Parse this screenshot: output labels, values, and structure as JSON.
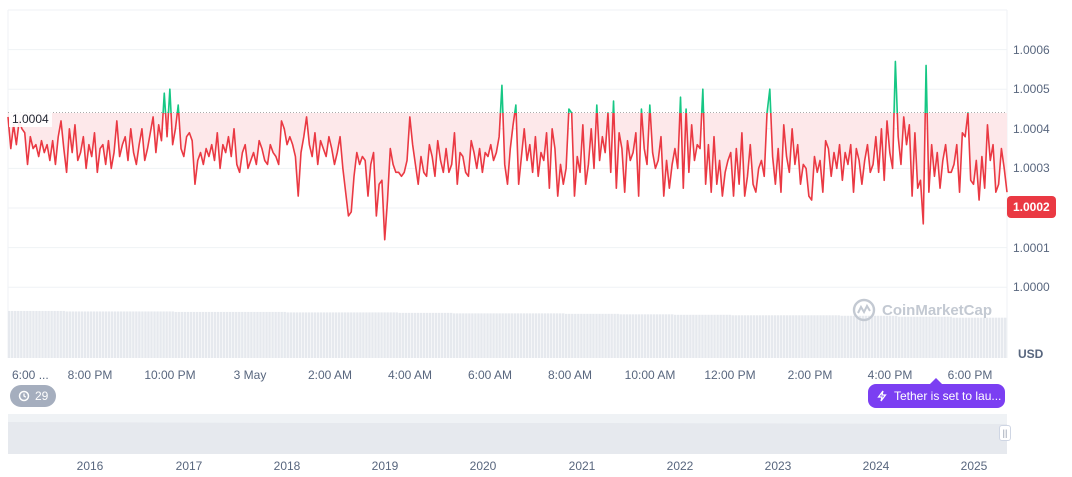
{
  "chart_data": {
    "type": "line",
    "title": "",
    "unit": "USD",
    "reference_price": 1.00044,
    "reference_label": "1.0004",
    "current_price": 1.0002,
    "current_price_label": "1.0002",
    "ylim": [
      0.99995,
      1.0007
    ],
    "y_ticks": [
      "1.0000",
      "1.0001",
      "1.0002",
      "1.0003",
      "1.0004",
      "1.0005",
      "1.0006"
    ],
    "x_ticks": [
      "6:00 ...",
      "8:00 PM",
      "10:00 PM",
      "3 May",
      "2:00 AM",
      "4:00 AM",
      "6:00 AM",
      "8:00 AM",
      "10:00 AM",
      "12:00 PM",
      "2:00 PM",
      "4:00 PM",
      "6:00 PM"
    ],
    "colors": {
      "above": "#16c784",
      "below": "#ea3943",
      "fill_below": "#fde8ea",
      "flag": "#ea3943"
    },
    "grid": true,
    "series": [
      {
        "values": [
          1.00043,
          1.00035,
          1.00041,
          1.00036,
          1.00042,
          1.0004,
          1.00039,
          1.00031,
          1.00038,
          1.00035,
          1.00036,
          1.00033,
          1.00037,
          1.00034,
          1.00036,
          1.00032,
          1.00037,
          1.00031,
          1.00038,
          1.00042,
          1.00035,
          1.00029,
          1.0004,
          1.00034,
          1.00041,
          1.00032,
          1.00034,
          1.00038,
          1.0003,
          1.00036,
          1.00033,
          1.00039,
          1.00029,
          1.00035,
          1.00036,
          1.00031,
          1.00037,
          1.0003,
          1.00034,
          1.00042,
          1.00033,
          1.00036,
          1.00038,
          1.00032,
          1.0004,
          1.00034,
          1.00031,
          1.00036,
          1.0004,
          1.00032,
          1.00035,
          1.00039,
          1.00043,
          1.00034,
          1.00041,
          1.00037,
          1.00049,
          1.00038,
          1.0005,
          1.00036,
          1.0004,
          1.00046,
          1.00035,
          1.00033,
          1.00038,
          1.00039,
          1.00037,
          1.00026,
          1.00032,
          1.00034,
          1.00031,
          1.00035,
          1.00033,
          1.00036,
          1.00032,
          1.00039,
          1.0003,
          1.00036,
          1.00034,
          1.00038,
          1.00033,
          1.0004,
          1.00031,
          1.00029,
          1.00034,
          1.00036,
          1.0003,
          1.00032,
          1.00034,
          1.00031,
          1.00037,
          1.00035,
          1.00032,
          1.00031,
          1.00036,
          1.00034,
          1.00033,
          1.00031,
          1.00042,
          1.0004,
          1.00036,
          1.00038,
          1.00036,
          1.00033,
          1.00023,
          1.00034,
          1.00038,
          1.00043,
          1.00036,
          1.00033,
          1.00039,
          1.00031,
          1.00037,
          1.00035,
          1.00033,
          1.00038,
          1.00035,
          1.00031,
          1.00034,
          1.00038,
          1.0003,
          1.00024,
          1.00018,
          1.00019,
          1.00028,
          1.00034,
          1.00031,
          1.00033,
          1.00032,
          1.00023,
          1.00031,
          1.00034,
          1.00018,
          1.00026,
          1.00027,
          1.00012,
          1.00022,
          1.00035,
          1.00031,
          1.00029,
          1.00029,
          1.00028,
          1.00029,
          1.00032,
          1.00043,
          1.00036,
          1.00031,
          1.00026,
          1.00033,
          1.00029,
          1.00028,
          1.00036,
          1.00033,
          1.00028,
          1.00037,
          1.00032,
          1.00029,
          1.00035,
          1.00029,
          1.00031,
          1.00039,
          1.00026,
          1.00034,
          1.00033,
          1.00029,
          1.00028,
          1.00037,
          1.00034,
          1.0003,
          1.00035,
          1.00029,
          1.00034,
          1.00033,
          1.00036,
          1.00032,
          1.00034,
          1.00038,
          1.00051,
          1.00031,
          1.00026,
          1.00035,
          1.00041,
          1.00046,
          1.00026,
          1.00033,
          1.0004,
          1.00032,
          1.00036,
          1.00029,
          1.00038,
          1.00028,
          1.00034,
          1.00032,
          1.00039,
          1.00025,
          1.0004,
          1.00035,
          1.00023,
          1.00031,
          1.00026,
          1.0003,
          1.00045,
          1.00044,
          1.00023,
          1.00033,
          1.00029,
          1.00041,
          1.00026,
          1.00031,
          1.0004,
          1.0003,
          1.00046,
          1.00032,
          1.00038,
          1.00034,
          1.00044,
          1.00029,
          1.00047,
          1.00025,
          1.00039,
          1.00035,
          1.00024,
          1.00037,
          1.00032,
          1.00034,
          1.00039,
          1.00023,
          1.00045,
          1.00035,
          1.00031,
          1.00046,
          1.00034,
          1.0003,
          1.00032,
          1.00038,
          1.00023,
          1.00032,
          1.00025,
          1.00031,
          1.00035,
          1.0003,
          1.00048,
          1.00025,
          1.00045,
          1.00029,
          1.00041,
          1.00032,
          1.00036,
          1.00035,
          1.0005,
          1.00026,
          1.00036,
          1.00024,
          1.00038,
          1.00026,
          1.00032,
          1.00023,
          1.00029,
          1.00032,
          1.00034,
          1.00023,
          1.00035,
          1.00026,
          1.00039,
          1.00023,
          1.00028,
          1.00036,
          1.00026,
          1.00024,
          1.0003,
          1.00032,
          1.00028,
          1.00044,
          1.0005,
          1.00033,
          1.00026,
          1.00035,
          1.00024,
          1.00041,
          1.00033,
          1.00029,
          1.0004,
          1.00031,
          1.00036,
          1.00026,
          1.00031,
          1.0003,
          1.00023,
          1.00022,
          1.00033,
          1.00029,
          1.00032,
          1.00024,
          1.00037,
          1.00035,
          1.00028,
          1.00034,
          1.0003,
          1.00036,
          1.00027,
          1.00034,
          1.00031,
          1.00036,
          1.00024,
          1.00035,
          1.00032,
          1.00026,
          1.00032,
          1.00036,
          1.00029,
          1.00031,
          1.00038,
          1.00029,
          1.0004,
          1.00027,
          1.00042,
          1.00034,
          1.0003,
          1.00057,
          1.00038,
          1.00031,
          1.00043,
          1.00036,
          1.00041,
          1.00023,
          1.00039,
          1.00025,
          1.00027,
          1.00016,
          1.00056,
          1.00024,
          1.00036,
          1.00028,
          1.00034,
          1.00025,
          1.00032,
          1.00036,
          1.00029,
          1.00029,
          1.00031,
          1.00036,
          1.00024,
          1.00039,
          1.00038,
          1.00044,
          1.00027,
          1.00026,
          1.00032,
          1.00022,
          1.00033,
          1.00025,
          1.00041,
          1.00032,
          1.00036,
          1.00024,
          1.00026,
          1.00035,
          1.0003,
          1.00024
        ]
      }
    ],
    "volume_levels": [
      0.98,
      0.97,
      0.97,
      0.96,
      0.96,
      0.95,
      0.95,
      0.94,
      0.93,
      0.93,
      0.92,
      0.91,
      0.9,
      0.89,
      0.89,
      0.88,
      0.86,
      0.84
    ]
  },
  "ui": {
    "watermark": "CoinMarketCap",
    "events_count": "29",
    "news_pill": "Tether is set to lau...",
    "navigator_years": [
      "2016",
      "2017",
      "2018",
      "2019",
      "2020",
      "2021",
      "2022",
      "2023",
      "2024",
      "2025"
    ]
  }
}
